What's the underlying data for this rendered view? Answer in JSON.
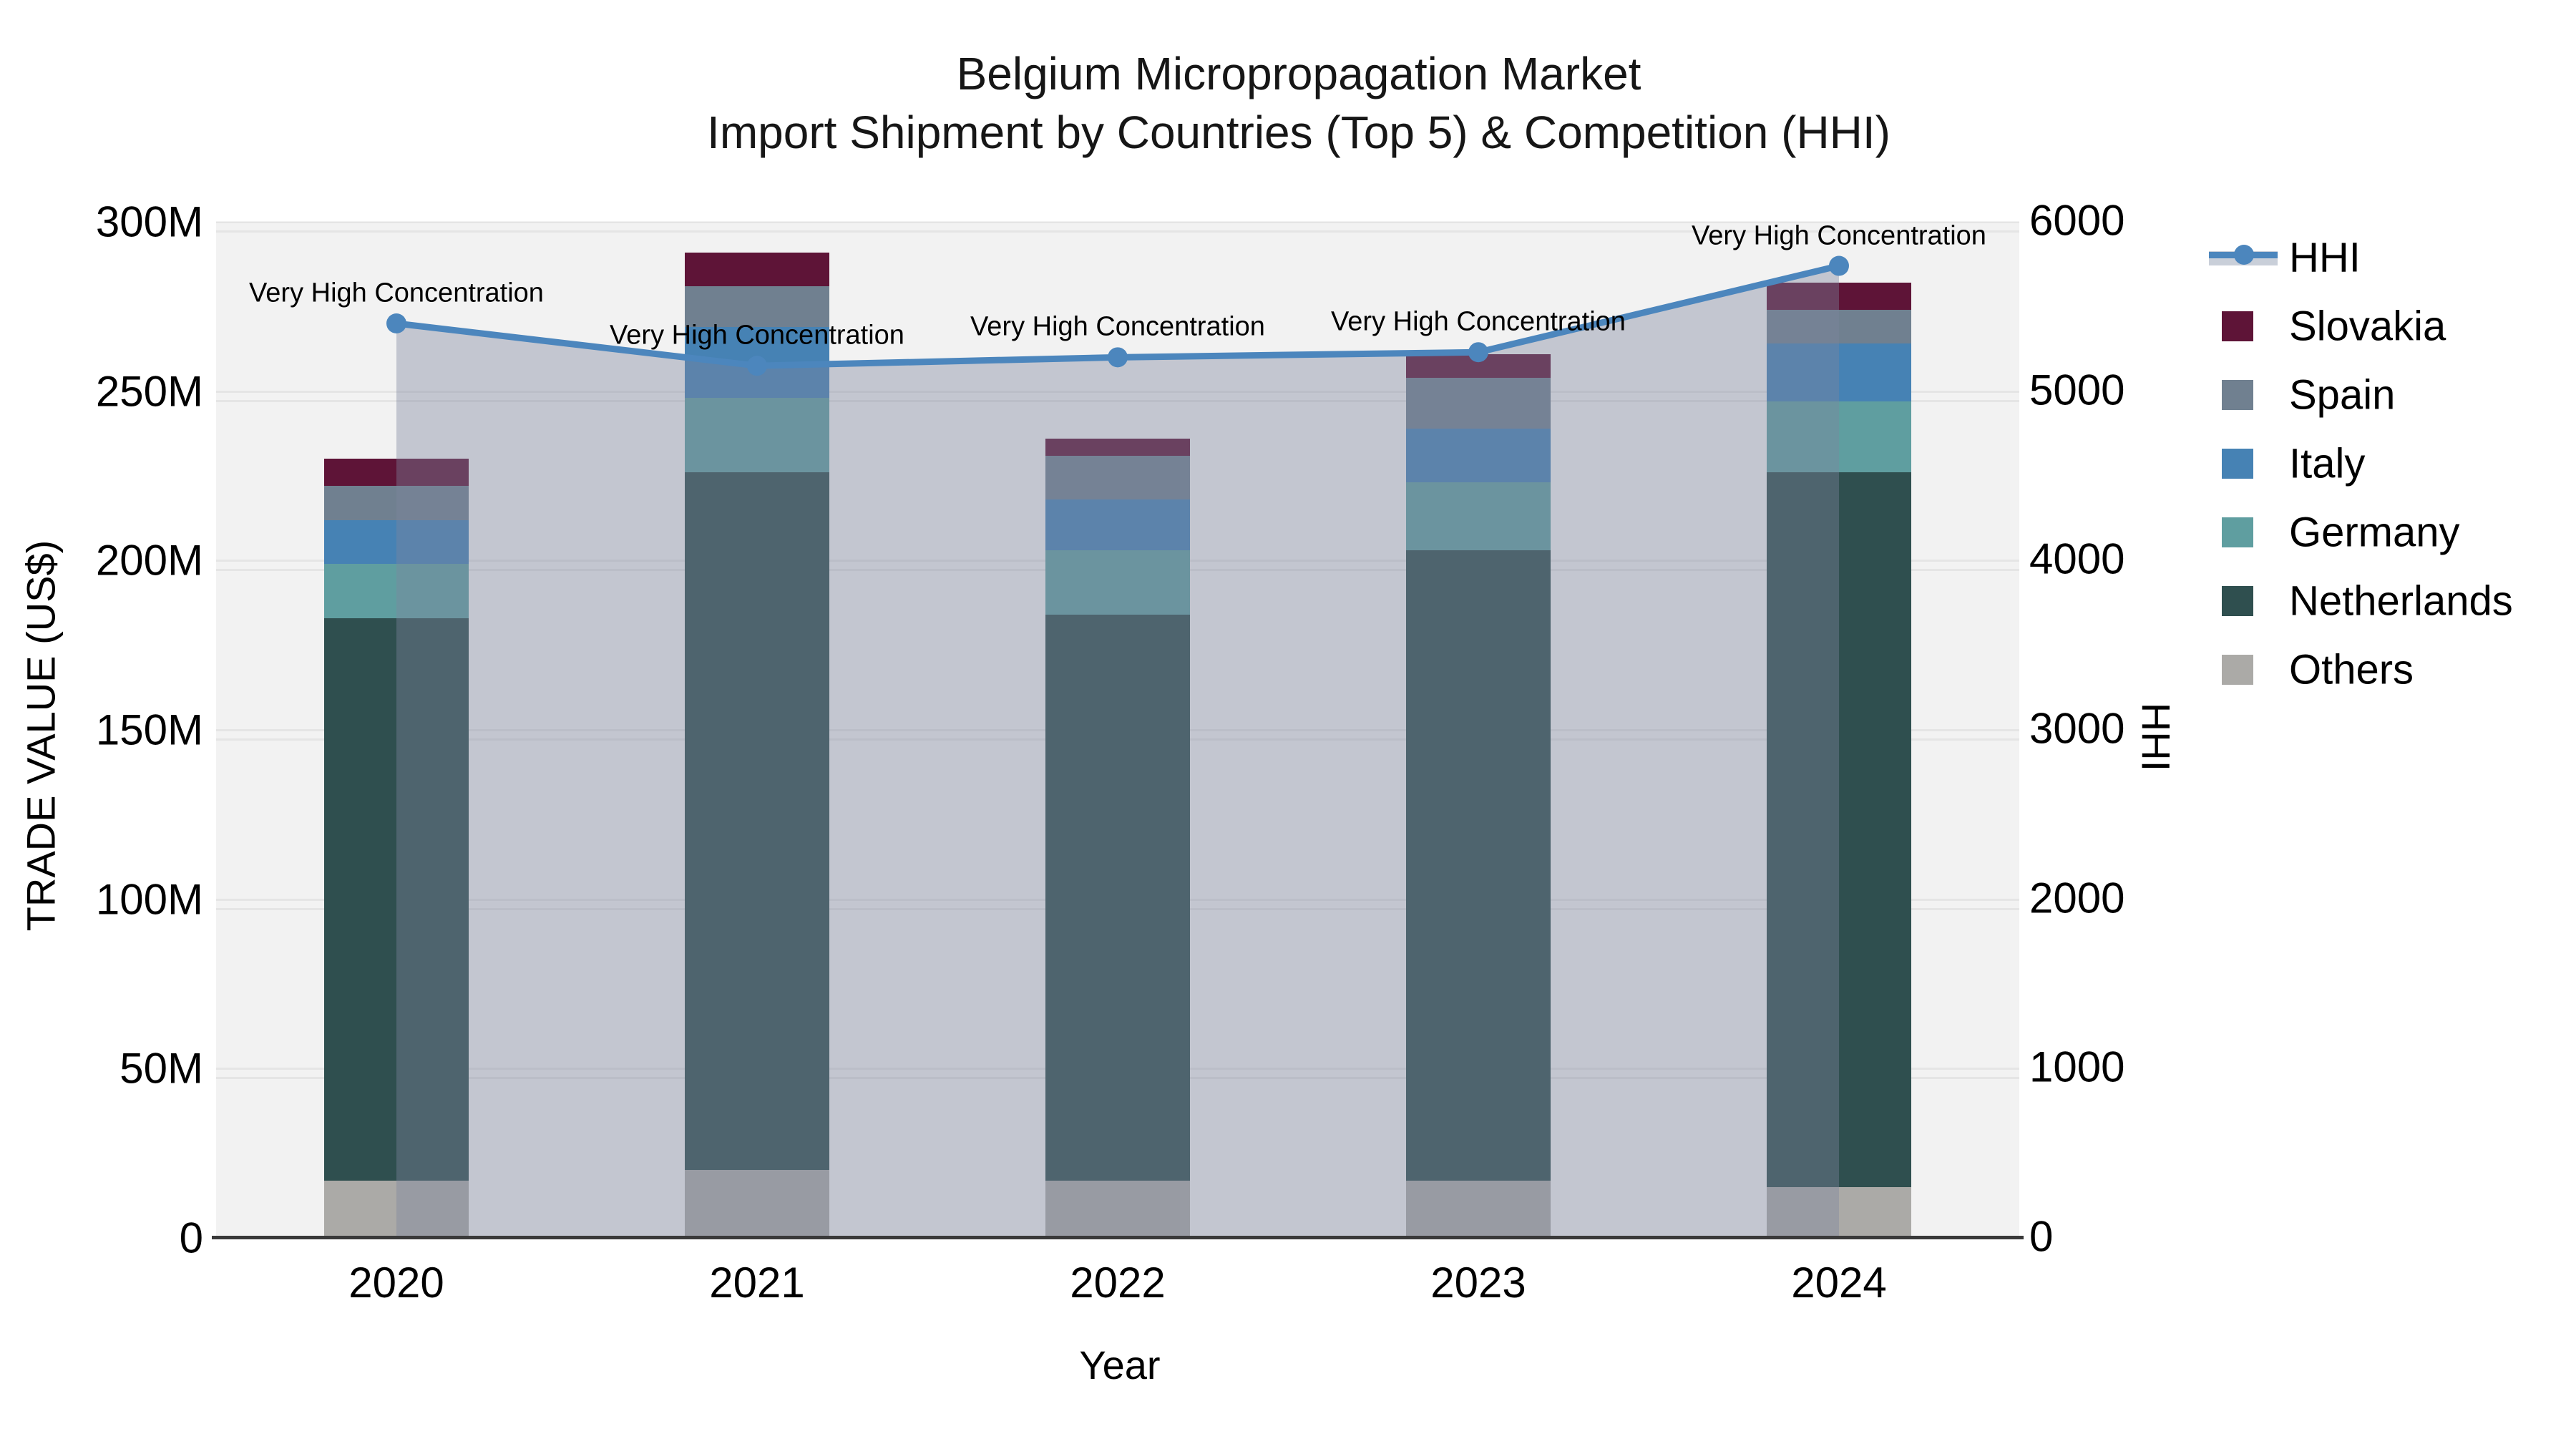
{
  "title": {
    "line1": "Belgium Micropropagation Market",
    "line2": "Import Shipment by Countries (Top 5) & Competition (HHI)"
  },
  "axes": {
    "x": {
      "label": "Year",
      "tick_labels": [
        "2020",
        "2021",
        "2022",
        "2023",
        "2024"
      ]
    },
    "y_left": {
      "label": "TRADE VALUE (US$)",
      "tick_labels": [
        "0",
        "50M",
        "100M",
        "150M",
        "200M",
        "250M",
        "300M"
      ]
    },
    "y_right": {
      "label": "HHI",
      "tick_labels": [
        "0",
        "1000",
        "2000",
        "3000",
        "4000",
        "5000",
        "6000"
      ]
    }
  },
  "legend": {
    "items": [
      {
        "label": "HHI",
        "type": "line",
        "color": "#4c86bd"
      },
      {
        "label": "Slovakia",
        "type": "square",
        "color": "#5e1437"
      },
      {
        "label": "Spain",
        "type": "square",
        "color": "#708090"
      },
      {
        "label": "Italy",
        "type": "square",
        "color": "#4682b4"
      },
      {
        "label": "Germany",
        "type": "square",
        "color": "#5f9ea0"
      },
      {
        "label": "Netherlands",
        "type": "square",
        "color": "#2f4f4f"
      },
      {
        "label": "Others",
        "type": "square",
        "color": "#abaaa7"
      }
    ]
  },
  "colors": {
    "plot_background": "#f2f2f2",
    "hhi_line": "#4c86bd",
    "hhi_area_overlay": "rgba(124,132,158,0.40)",
    "axis_line": "#3a3a3a",
    "gridline": "rgba(0,0,0,0.05)"
  },
  "chart_data": {
    "type": "bar",
    "subtype": "stacked-bars-with-line",
    "categories": [
      2020,
      2021,
      2022,
      2023,
      2024
    ],
    "stack_order_bottom_to_top": [
      "Others",
      "Netherlands",
      "Germany",
      "Italy",
      "Spain",
      "Slovakia"
    ],
    "series": [
      {
        "name": "Others",
        "color": "#abaaa7",
        "values": [
          17,
          20,
          17,
          17,
          15
        ]
      },
      {
        "name": "Netherlands",
        "color": "#2f4f4f",
        "values": [
          166,
          206,
          167,
          186,
          211
        ]
      },
      {
        "name": "Germany",
        "color": "#5f9ea0",
        "values": [
          16,
          22,
          19,
          20,
          21
        ]
      },
      {
        "name": "Italy",
        "color": "#4682b4",
        "values": [
          13,
          21,
          15,
          16,
          17
        ]
      },
      {
        "name": "Spain",
        "color": "#708090",
        "values": [
          10,
          12,
          13,
          15,
          10
        ]
      },
      {
        "name": "Slovakia",
        "color": "#5e1437",
        "values": [
          8,
          10,
          5,
          7,
          8
        ]
      }
    ],
    "bar_totals_millions": [
      230,
      291,
      236,
      261,
      282
    ],
    "line_series": {
      "name": "HHI",
      "axis": "right",
      "values": [
        5400,
        5150,
        5200,
        5230,
        5740
      ],
      "area_fill": true
    },
    "annotations": [
      {
        "x": 2020,
        "label": "Very High Concentration"
      },
      {
        "x": 2021,
        "label": "Very High Concentration"
      },
      {
        "x": 2022,
        "label": "Very High Concentration"
      },
      {
        "x": 2023,
        "label": "Very High Concentration"
      },
      {
        "x": 2024,
        "label": "Very High Concentration"
      }
    ],
    "title": "Belgium Micropropagation Market — Import Shipment by Countries (Top 5) & Competition (HHI)",
    "xlabel": "Year",
    "ylabel": "TRADE VALUE (US$)",
    "y2label": "HHI",
    "ylim": [
      0,
      300000000
    ],
    "y2lim": [
      0,
      6000
    ],
    "grid": true,
    "legend_position": "right"
  }
}
